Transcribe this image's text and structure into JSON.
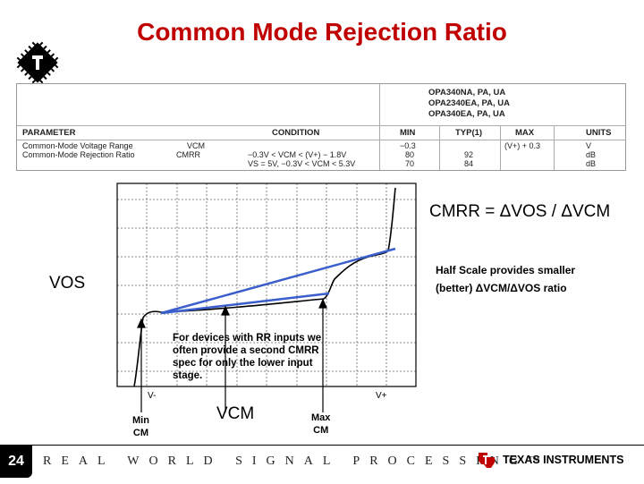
{
  "title": "Common Mode Rejection Ratio",
  "spec_table": {
    "part_numbers": [
      "OPA340NA, PA, UA",
      "OPA2340EA, PA, UA",
      "OPA340EA, PA, UA"
    ],
    "headers": [
      "PARAMETER",
      "CONDITION",
      "MIN",
      "TYP(1)",
      "MAX",
      "UNITS"
    ],
    "rows": [
      [
        "Common-Mode Voltage Range",
        "VCM",
        "",
        "−0.3",
        "",
        "(V+) + 0.3",
        "V"
      ],
      [
        "Common-Mode Rejection Ratio",
        "CMRR",
        "−0.3V < VCM < (V+) − 1.8V",
        "80",
        "92",
        "",
        "dB"
      ],
      [
        "",
        "",
        "VS = 5V, −0.3V < VCM < 5.3V",
        "70",
        "84",
        "",
        "dB"
      ]
    ]
  },
  "diagram": {
    "cmrr_equation": "CMRR = ΔVOS / ΔVCM",
    "half_scale_line1": "Half Scale provides smaller",
    "half_scale_line2": "(better)  ΔVCM/ΔVOS ratio",
    "vos_label": "VOS",
    "rr_note": "For devices with RR inputs we often provide a second CMRR spec for only the lower input stage.",
    "v_minus": "V-",
    "v_plus": "V+",
    "min_cm": "Min\nCM",
    "vcm_label": "VCM",
    "max_cm": "Max\nCM",
    "colors": {
      "title": "#c00000",
      "slope_lines": "#3a5fcd",
      "curve": "#000000",
      "grid": "#666666"
    }
  },
  "footer": {
    "page_number": "24",
    "tagline": "REAL WORLD SIGNAL PROCESSING™",
    "brand": "TEXAS INSTRUMENTS"
  }
}
